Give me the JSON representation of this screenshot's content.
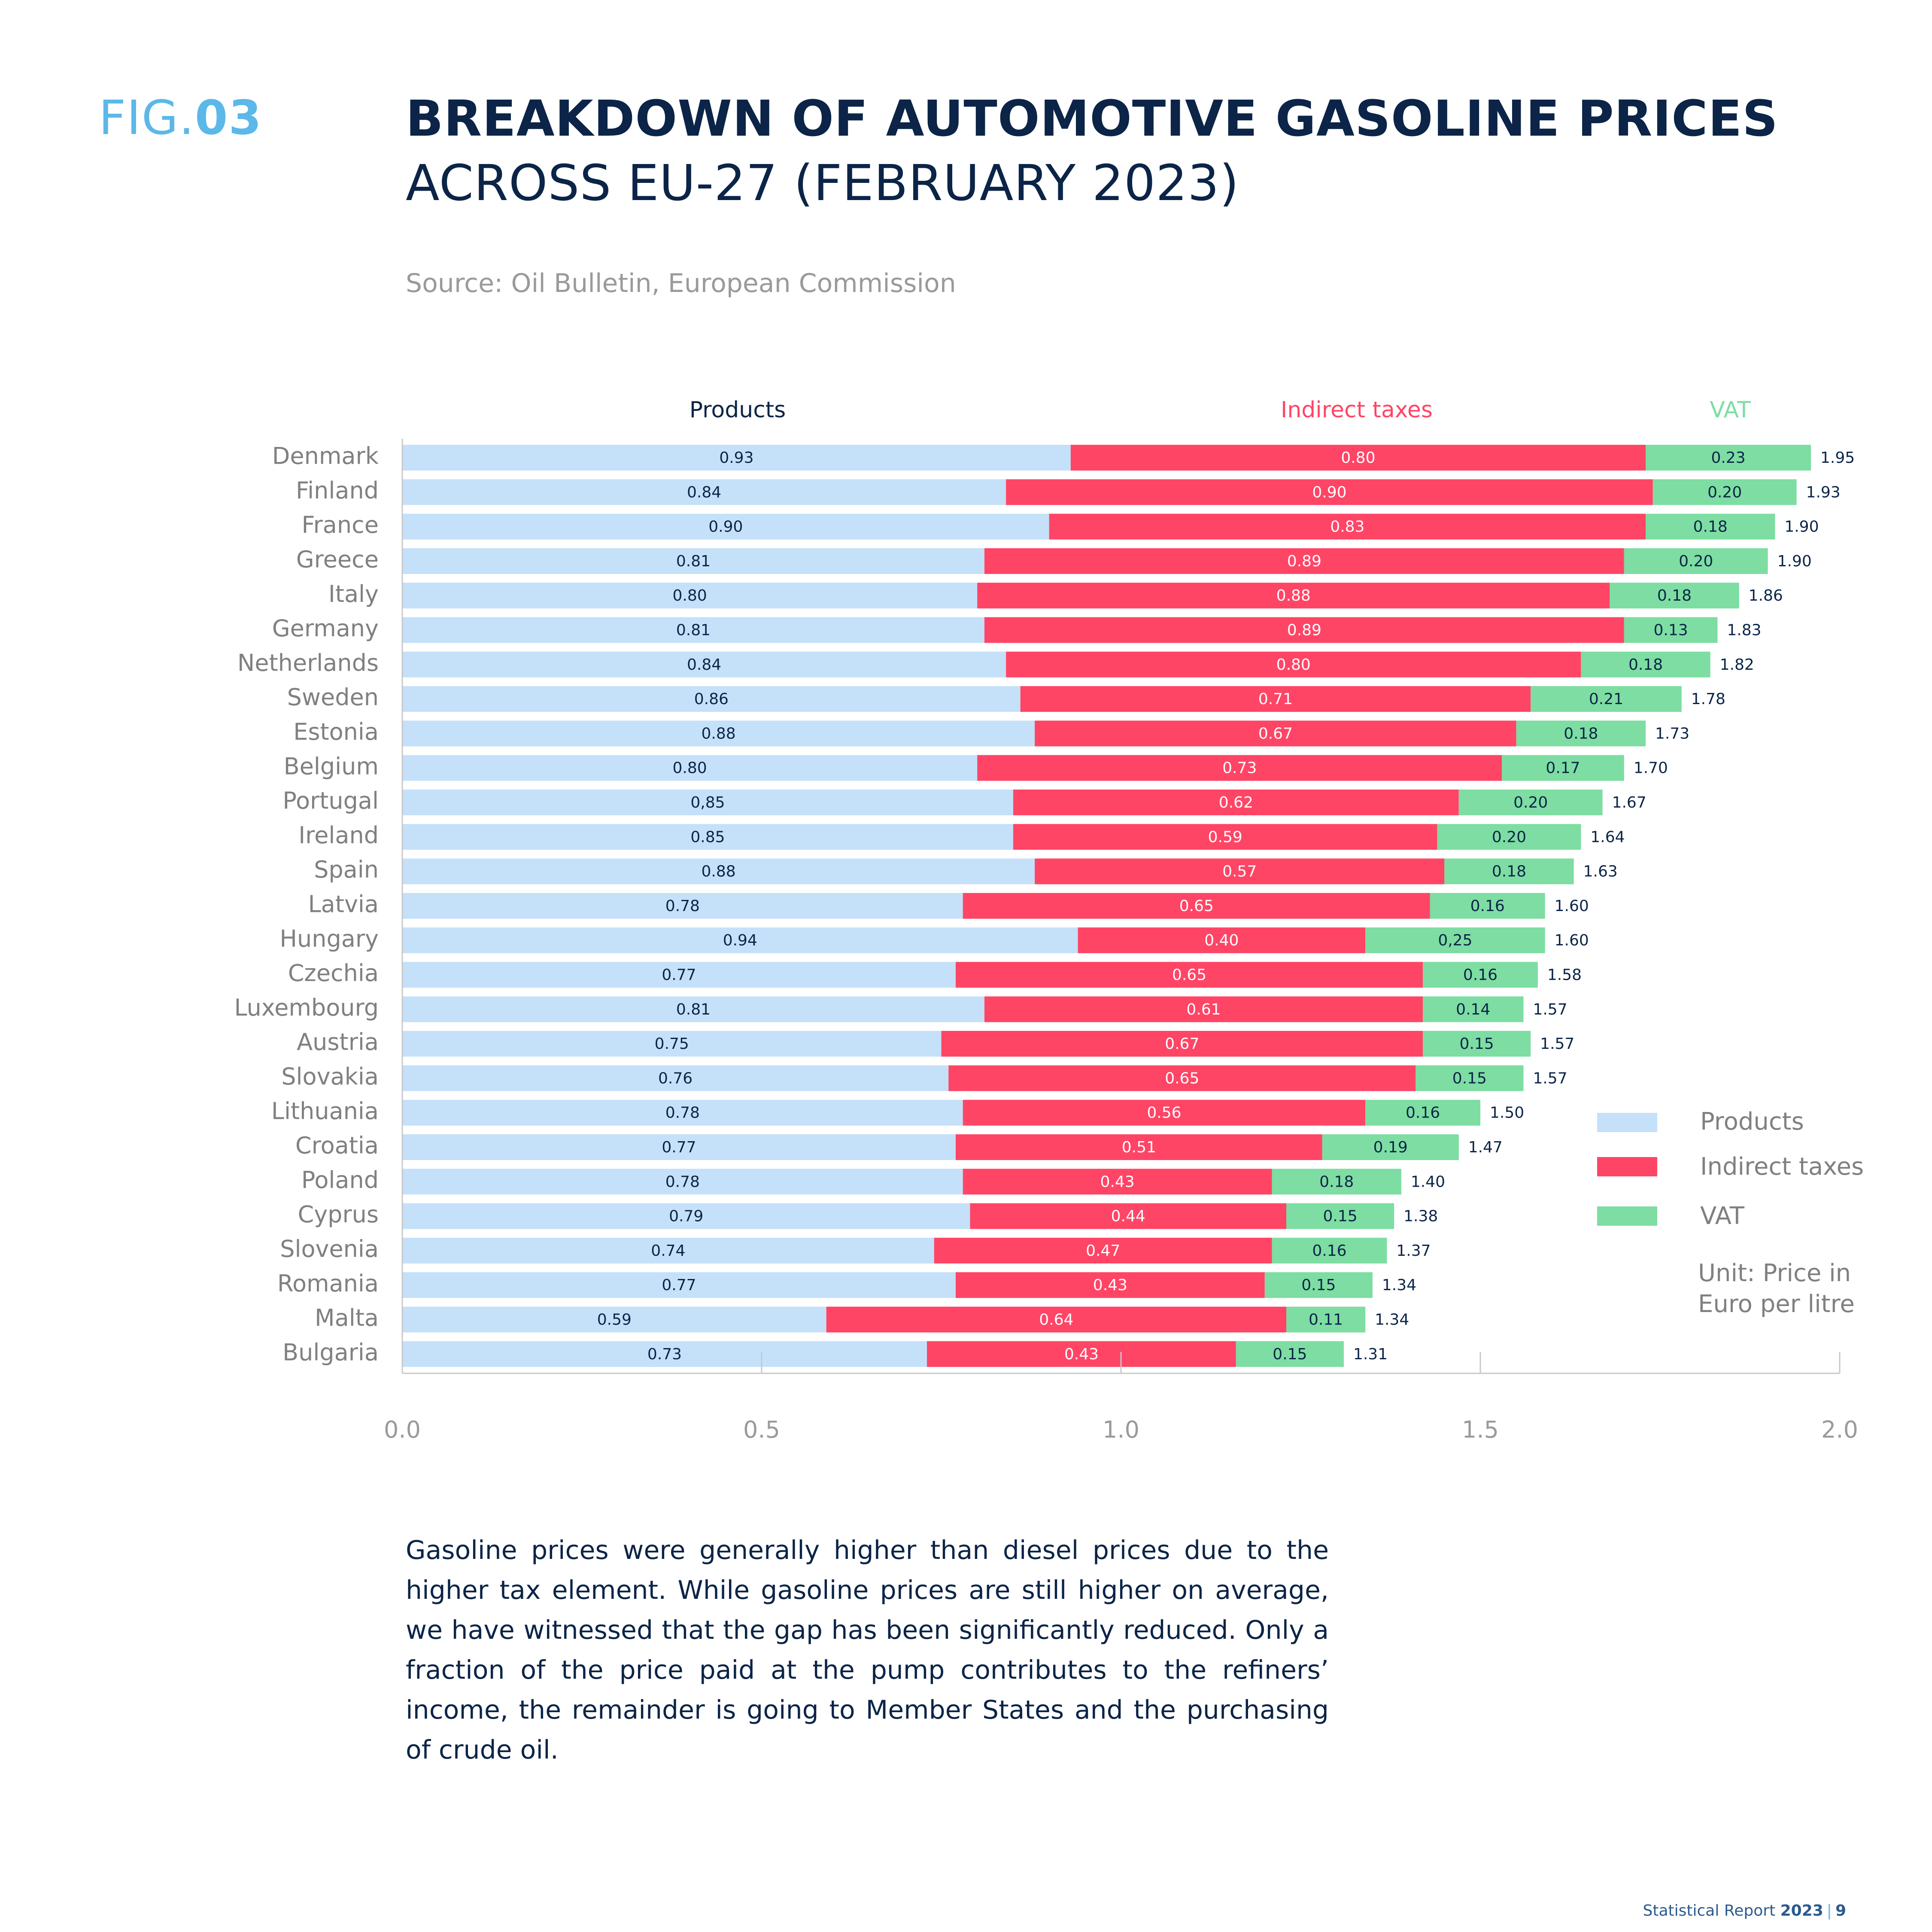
{
  "header": {
    "fig_prefix": "FIG.",
    "fig_number": "03",
    "title_line1": "BREAKDOWN OF AUTOMOTIVE GASOLINE PRICES",
    "title_line2": "ACROSS EU-27 (FEBRUARY 2023)",
    "source": "Source: Oil Bulletin, European Commission"
  },
  "legend": {
    "items": [
      {
        "label": "Products",
        "color": "#c5e0f9"
      },
      {
        "label": "Indirect taxes",
        "color": "#ff4566"
      },
      {
        "label": "VAT",
        "color": "#7ddda2"
      }
    ],
    "unit_line1": "Unit: Price in",
    "unit_line2": "Euro per litre"
  },
  "chart_data": {
    "type": "bar",
    "orientation": "horizontal",
    "stacked": true,
    "series_headers": [
      {
        "label": "Products",
        "color": "#0b2447"
      },
      {
        "label": "Indirect taxes",
        "color": "#ff4566"
      },
      {
        "label": "VAT",
        "color": "#7ddda2"
      }
    ],
    "categories": [
      "Denmark",
      "Finland",
      "France",
      "Greece",
      "Italy",
      "Germany",
      "Netherlands",
      "Sweden",
      "Estonia",
      "Belgium",
      "Portugal",
      "Ireland",
      "Spain",
      "Latvia",
      "Hungary",
      "Czechia",
      "Luxembourg",
      "Austria",
      "Slovakia",
      "Lithuania",
      "Croatia",
      "Poland",
      "Cyprus",
      "Slovenia",
      "Romania",
      "Malta",
      "Bulgaria"
    ],
    "series": [
      {
        "name": "Products",
        "color": "#c5e0f9",
        "values": [
          0.93,
          0.84,
          0.9,
          0.81,
          0.8,
          0.81,
          0.84,
          0.86,
          0.88,
          0.8,
          0.85,
          0.85,
          0.88,
          0.78,
          0.94,
          0.77,
          0.81,
          0.75,
          0.76,
          0.78,
          0.77,
          0.78,
          0.79,
          0.74,
          0.77,
          0.59,
          0.73
        ],
        "labels": [
          "0.93",
          "0.84",
          "0.90",
          "0.81",
          "0.80",
          "0.81",
          "0.84",
          "0.86",
          "0.88",
          "0.80",
          "0,85",
          "0.85",
          "0.88",
          "0.78",
          "0.94",
          "0.77",
          "0.81",
          "0.75",
          "0.76",
          "0.78",
          "0.77",
          "0.78",
          "0.79",
          "0.74",
          "0.77",
          "0.59",
          "0.73"
        ]
      },
      {
        "name": "Indirect taxes",
        "color": "#ff4566",
        "values": [
          0.8,
          0.9,
          0.83,
          0.89,
          0.88,
          0.89,
          0.8,
          0.71,
          0.67,
          0.73,
          0.62,
          0.59,
          0.57,
          0.65,
          0.4,
          0.65,
          0.61,
          0.67,
          0.65,
          0.56,
          0.51,
          0.43,
          0.44,
          0.47,
          0.43,
          0.64,
          0.43
        ],
        "labels": [
          "0.80",
          "0.90",
          "0.83",
          "0.89",
          "0.88",
          "0.89",
          "0.80",
          "0.71",
          "0.67",
          "0.73",
          "0.62",
          "0.59",
          "0.57",
          "0.65",
          "0.40",
          "0.65",
          "0.61",
          "0.67",
          "0.65",
          "0.56",
          "0.51",
          "0.43",
          "0.44",
          "0.47",
          "0.43",
          "0.64",
          "0.43"
        ]
      },
      {
        "name": "VAT",
        "color": "#7ddda2",
        "values": [
          0.23,
          0.2,
          0.18,
          0.2,
          0.18,
          0.13,
          0.18,
          0.21,
          0.18,
          0.17,
          0.2,
          0.2,
          0.18,
          0.16,
          0.25,
          0.16,
          0.14,
          0.15,
          0.15,
          0.16,
          0.19,
          0.18,
          0.15,
          0.16,
          0.15,
          0.11,
          0.15
        ],
        "labels": [
          "0.23",
          "0.20",
          "0.18",
          "0.20",
          "0.18",
          "0.13",
          "0.18",
          "0.21",
          "0.18",
          "0.17",
          "0.20",
          "0.20",
          "0.18",
          "0.16",
          "0,25",
          "0.16",
          "0.14",
          "0.15",
          "0.15",
          "0.16",
          "0.19",
          "0.18",
          "0.15",
          "0.16",
          "0.15",
          "0.11",
          "0.15"
        ]
      }
    ],
    "totals": [
      "1.95",
      "1.93",
      "1.90",
      "1.90",
      "1.86",
      "1.83",
      "1.82",
      "1.78",
      "1.73",
      "1.70",
      "1.67",
      "1.64",
      "1.63",
      "1.60",
      "1.60",
      "1.58",
      "1.57",
      "1.57",
      "1.57",
      "1.50",
      "1.47",
      "1.40",
      "1.38",
      "1.37",
      "1.34",
      "1.34",
      "1.31"
    ],
    "xlim": [
      0,
      2.0
    ],
    "xticks": [
      "0.0",
      "0.5",
      "1.0",
      "1.5",
      "2.0"
    ],
    "grid": false,
    "legend_position": "right"
  },
  "body_text": "Gasoline prices were generally higher than diesel prices due to the higher tax element. While gasoline prices are still higher on average, we have witnessed that the gap has been significantly reduced. Only a fraction of the price paid at the pump contributes to the refiners’ income, the remainder is going to Member States and the purchasing of crude oil.",
  "footer": {
    "label": "Statistical Report",
    "year": "2023",
    "separator": "|",
    "page": "9"
  }
}
